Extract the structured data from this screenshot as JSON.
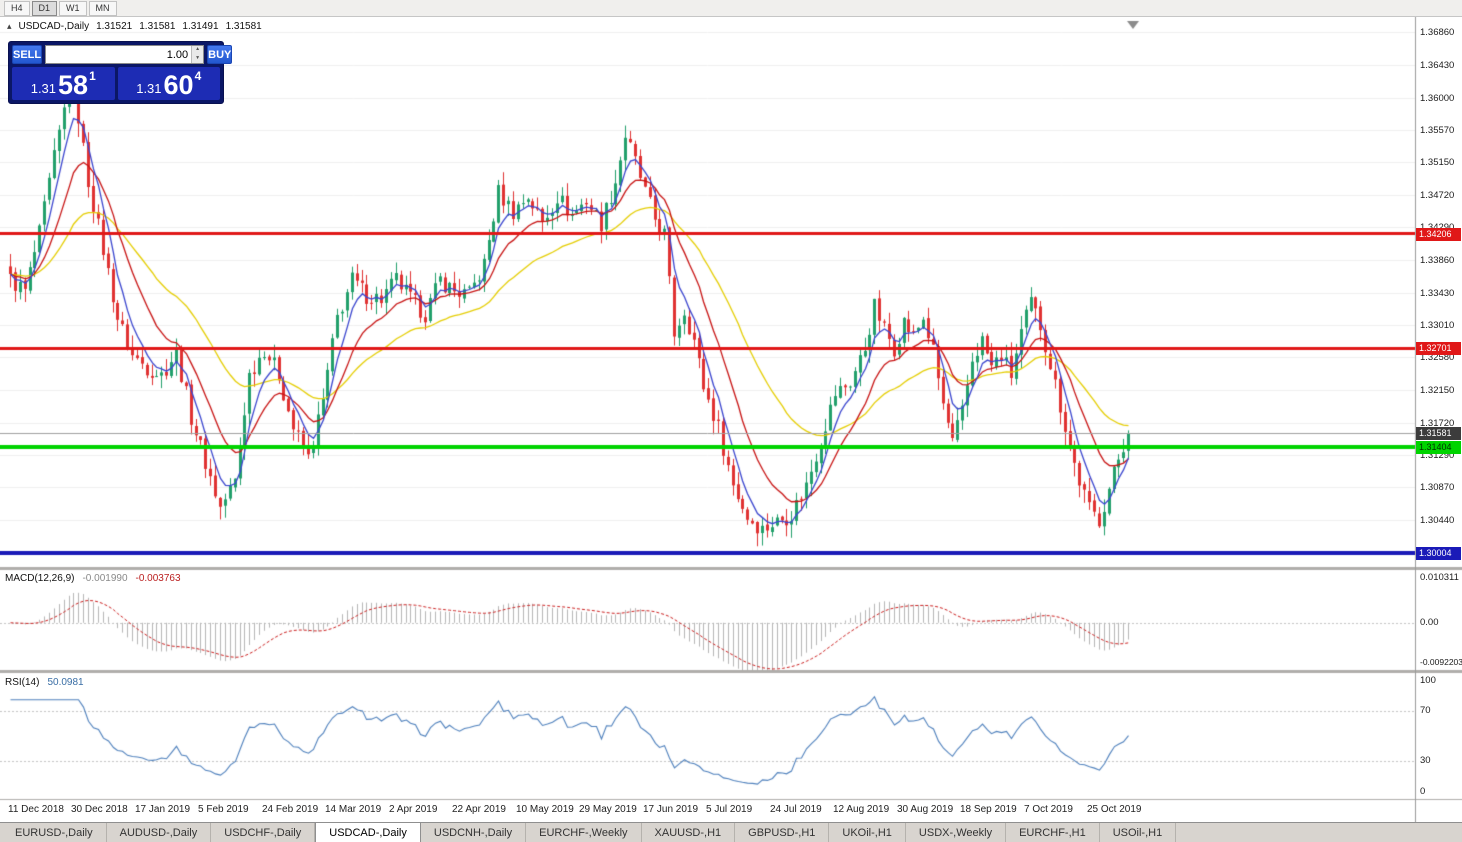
{
  "toolbar": {
    "timeframes": [
      {
        "label": "H4",
        "active": false
      },
      {
        "label": "D1",
        "active": true
      },
      {
        "label": "W1",
        "active": false
      },
      {
        "label": "MN",
        "active": false
      }
    ]
  },
  "icons": {
    "collapse_triangle": "▴",
    "volume_up": "▲",
    "volume_down": "▼"
  },
  "trade_panel": {
    "sell_label": "SELL",
    "buy_label": "BUY",
    "volume": "1.00",
    "sell_price": {
      "base": "1.31",
      "big": "58",
      "sup": "1"
    },
    "buy_price": {
      "base": "1.31",
      "big": "60",
      "sup": "4"
    }
  },
  "chart": {
    "header": {
      "symbol": "USDCAD-,Daily",
      "open": "1.31521",
      "high": "1.31581",
      "low": "1.31491",
      "close": "1.31581"
    },
    "price_axis_ticks": [
      "1.36860",
      "1.36430",
      "1.36000",
      "1.35570",
      "1.35150",
      "1.34720",
      "1.34290",
      "1.33860",
      "1.33430",
      "1.33010",
      "1.32580",
      "1.32150",
      "1.31720",
      "1.31290",
      "1.30870",
      "1.30440"
    ],
    "levels": [
      {
        "name": "resistance-upper",
        "price": 1.34206,
        "label": "1.34206",
        "color": "#e01818",
        "line_width": 3,
        "badge_bg": "#e01818",
        "badge_fg": "#ffffff"
      },
      {
        "name": "resistance-lower",
        "price": 1.32701,
        "label": "1.32701",
        "color": "#e01818",
        "line_width": 3,
        "badge_bg": "#e01818",
        "badge_fg": "#ffffff"
      },
      {
        "name": "support-green",
        "price": 1.31404,
        "label": "1.31404",
        "color": "#00d400",
        "line_width": 4,
        "badge_bg": "#00d400",
        "badge_fg": "#003300"
      },
      {
        "name": "support-blue",
        "price": 1.30004,
        "label": "1.30004",
        "color": "#1a1ab8",
        "line_width": 4,
        "badge_bg": "#1a1ab8",
        "badge_fg": "#ffffff"
      }
    ],
    "current_price": {
      "value": 1.31581,
      "label": "1.31581",
      "badge_bg": "#3c3c3c",
      "badge_fg": "#ffffff"
    },
    "macd": {
      "title": "MACD(12,26,9)",
      "value_main": "-0.001990",
      "value_signal": "-0.003763",
      "scale_max": "0.010311",
      "scale_zero": "0.00",
      "scale_min": "-0.0092203"
    },
    "rsi": {
      "title": "RSI(14)",
      "value": "50.0981",
      "levels": [
        "100",
        "70",
        "30",
        "0"
      ]
    },
    "date_axis": [
      "11 Dec 2018",
      "30 Dec 2018",
      "17 Jan 2019",
      "5 Feb 2019",
      "24 Feb 2019",
      "14 Mar 2019",
      "2 Apr 2019",
      "22 Apr 2019",
      "10 May 2019",
      "29 May 2019",
      "17 Jun 2019",
      "5 Jul 2019",
      "24 Jul 2019",
      "12 Aug 2019",
      "30 Aug 2019",
      "18 Sep 2019",
      "7 Oct 2019",
      "25 Oct 2019"
    ]
  },
  "tabs": [
    {
      "label": "EURUSD-,Daily",
      "active": false
    },
    {
      "label": "AUDUSD-,Daily",
      "active": false
    },
    {
      "label": "USDCHF-,Daily",
      "active": false
    },
    {
      "label": "USDCAD-,Daily",
      "active": true
    },
    {
      "label": "USDCNH-,Daily",
      "active": false
    },
    {
      "label": "EURCHF-,Weekly",
      "active": false
    },
    {
      "label": "XAUUSD-,H1",
      "active": false
    },
    {
      "label": "GBPUSD-,H1",
      "active": false
    },
    {
      "label": "UKOil-,H1",
      "active": false
    },
    {
      "label": "USDX-,Weekly",
      "active": false
    },
    {
      "label": "EURCHF-,H1",
      "active": false
    },
    {
      "label": "USOil-,H1",
      "active": false
    }
  ],
  "chart_data": {
    "type": "candlestick+indicators",
    "symbol": "USDCAD",
    "timeframe": "Daily",
    "candle_count": 230,
    "y_range": [
      1.2982,
      1.3706
    ],
    "x_tick_labels": [
      "11 Dec 2018",
      "30 Dec 2018",
      "17 Jan 2019",
      "5 Feb 2019",
      "24 Feb 2019",
      "14 Mar 2019",
      "2 Apr 2019",
      "22 Apr 2019",
      "10 May 2019",
      "29 May 2019",
      "17 Jun 2019",
      "5 Jul 2019",
      "24 Jul 2019",
      "12 Aug 2019",
      "30 Aug 2019",
      "18 Sep 2019",
      "7 Oct 2019",
      "25 Oct 2019"
    ],
    "candles_per_tick": 13,
    "last_close": 1.31581,
    "noise_amplitude": 0.0012,
    "wick_amplitude": 0.0018,
    "close_waypoints": [
      [
        0,
        1.336
      ],
      [
        3,
        1.3345
      ],
      [
        6,
        1.342
      ],
      [
        9,
        1.352
      ],
      [
        12,
        1.3615
      ],
      [
        14,
        1.3575
      ],
      [
        16,
        1.349
      ],
      [
        19,
        1.34
      ],
      [
        22,
        1.331
      ],
      [
        25,
        1.326
      ],
      [
        28,
        1.3245
      ],
      [
        31,
        1.3235
      ],
      [
        34,
        1.3265
      ],
      [
        37,
        1.318
      ],
      [
        40,
        1.312
      ],
      [
        43,
        1.306
      ],
      [
        46,
        1.3095
      ],
      [
        49,
        1.3235
      ],
      [
        52,
        1.327
      ],
      [
        55,
        1.3235
      ],
      [
        58,
        1.3165
      ],
      [
        61,
        1.3125
      ],
      [
        64,
        1.32
      ],
      [
        67,
        1.331
      ],
      [
        70,
        1.336
      ],
      [
        73,
        1.334
      ],
      [
        76,
        1.3335
      ],
      [
        79,
        1.336
      ],
      [
        82,
        1.3335
      ],
      [
        85,
        1.3315
      ],
      [
        88,
        1.336
      ],
      [
        91,
        1.3345
      ],
      [
        94,
        1.334
      ],
      [
        97,
        1.338
      ],
      [
        100,
        1.3475
      ],
      [
        103,
        1.345
      ],
      [
        106,
        1.347
      ],
      [
        109,
        1.3435
      ],
      [
        112,
        1.347
      ],
      [
        115,
        1.3445
      ],
      [
        118,
        1.3465
      ],
      [
        121,
        1.3435
      ],
      [
        124,
        1.349
      ],
      [
        126,
        1.355
      ],
      [
        128,
        1.3515
      ],
      [
        130,
        1.3475
      ],
      [
        132,
        1.344
      ],
      [
        134,
        1.342
      ],
      [
        136,
        1.329
      ],
      [
        138,
        1.332
      ],
      [
        140,
        1.328
      ],
      [
        142,
        1.322
      ],
      [
        145,
        1.3165
      ],
      [
        148,
        1.309
      ],
      [
        151,
        1.3048
      ],
      [
        154,
        1.3032
      ],
      [
        157,
        1.3042
      ],
      [
        160,
        1.3052
      ],
      [
        163,
        1.309
      ],
      [
        166,
        1.315
      ],
      [
        169,
        1.321
      ],
      [
        172,
        1.3225
      ],
      [
        175,
        1.327
      ],
      [
        177,
        1.3325
      ],
      [
        179,
        1.3295
      ],
      [
        181,
        1.327
      ],
      [
        183,
        1.3305
      ],
      [
        185,
        1.3285
      ],
      [
        187,
        1.331
      ],
      [
        189,
        1.3265
      ],
      [
        191,
        1.3195
      ],
      [
        193,
        1.3145
      ],
      [
        195,
        1.3185
      ],
      [
        197,
        1.3255
      ],
      [
        199,
        1.328
      ],
      [
        201,
        1.3245
      ],
      [
        203,
        1.326
      ],
      [
        205,
        1.3235
      ],
      [
        207,
        1.329
      ],
      [
        209,
        1.333
      ],
      [
        211,
        1.33
      ],
      [
        213,
        1.325
      ],
      [
        215,
        1.3195
      ],
      [
        217,
        1.314
      ],
      [
        219,
        1.3095
      ],
      [
        221,
        1.3058
      ],
      [
        223,
        1.3045
      ],
      [
        225,
        1.3085
      ],
      [
        227,
        1.3125
      ],
      [
        229,
        1.31581
      ]
    ],
    "moving_averages": [
      {
        "period": 5,
        "type": "ema",
        "color": "#3b46cf"
      },
      {
        "period": 13,
        "type": "ema",
        "color": "#c81414"
      },
      {
        "period": 34,
        "type": "ema",
        "color": "#e5ce04"
      }
    ],
    "macd": {
      "fast": 12,
      "slow": 26,
      "signal": 9,
      "scale": [
        -0.0092203,
        0.010311
      ]
    },
    "rsi": {
      "period": 14,
      "scale": [
        0,
        100
      ],
      "guides": [
        30,
        70
      ]
    },
    "horizontal_levels": [
      1.34206,
      1.32701,
      1.31404,
      1.30004
    ],
    "colors": {
      "up": "#22a06b",
      "down": "#e03232",
      "macd_hist": "#b6b6b6",
      "macd_signal": "#cc2020",
      "rsi_line": "#4f81bd",
      "grid": "#f0f0f0"
    }
  }
}
